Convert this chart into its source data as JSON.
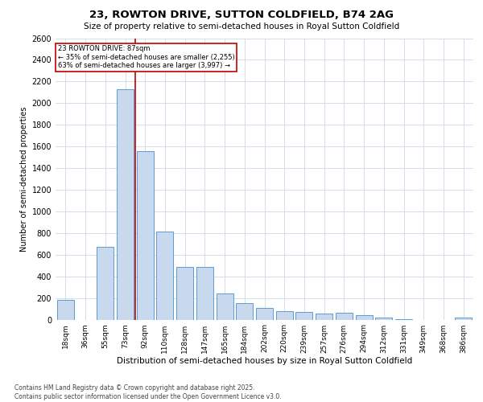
{
  "title": "23, ROWTON DRIVE, SUTTON COLDFIELD, B74 2AG",
  "subtitle": "Size of property relative to semi-detached houses in Royal Sutton Coldfield",
  "xlabel": "Distribution of semi-detached houses by size in Royal Sutton Coldfield",
  "ylabel": "Number of semi-detached properties",
  "annotation_line1": "23 ROWTON DRIVE: 87sqm",
  "annotation_line2": "← 35% of semi-detached houses are smaller (2,255)",
  "annotation_line3": "63% of semi-detached houses are larger (3,997) →",
  "footer_line1": "Contains HM Land Registry data © Crown copyright and database right 2025.",
  "footer_line2": "Contains public sector information licensed under the Open Government Licence v3.0.",
  "bar_color": "#c8d9ee",
  "bar_edge_color": "#5b9bd5",
  "vline_color": "#c00000",
  "background_color": "#ffffff",
  "grid_color": "#d0d8e8",
  "categories": [
    "18sqm",
    "36sqm",
    "55sqm",
    "73sqm",
    "92sqm",
    "110sqm",
    "128sqm",
    "147sqm",
    "165sqm",
    "184sqm",
    "202sqm",
    "220sqm",
    "239sqm",
    "257sqm",
    "276sqm",
    "294sqm",
    "312sqm",
    "331sqm",
    "349sqm",
    "368sqm",
    "386sqm"
  ],
  "values": [
    180,
    0,
    670,
    2130,
    1560,
    810,
    490,
    490,
    240,
    150,
    110,
    80,
    70,
    55,
    60,
    40,
    15,
    5,
    0,
    0,
    15
  ],
  "vline_x": 3.5,
  "ylim": [
    0,
    2600
  ],
  "yticks": [
    0,
    200,
    400,
    600,
    800,
    1000,
    1200,
    1400,
    1600,
    1800,
    2000,
    2200,
    2400,
    2600
  ]
}
